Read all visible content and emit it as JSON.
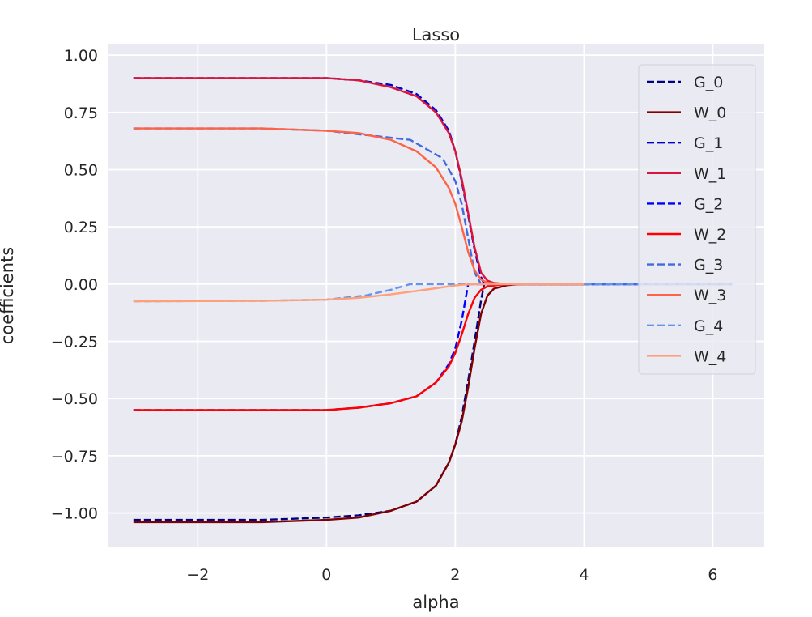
{
  "chart_data": {
    "type": "line",
    "title": "Lasso",
    "xlabel": "alpha",
    "ylabel": "coefficients",
    "xlim": [
      -3.4,
      6.8
    ],
    "ylim": [
      -1.15,
      1.05
    ],
    "xticks": [
      -2,
      0,
      2,
      4,
      6
    ],
    "xtick_labels": [
      "−2",
      "0",
      "2",
      "4",
      "6"
    ],
    "yticks": [
      1.0,
      0.75,
      0.5,
      0.25,
      0.0,
      -0.25,
      -0.5,
      -0.75,
      -1.0
    ],
    "ytick_labels": [
      "1.00",
      "0.75",
      "0.50",
      "0.25",
      "0.00",
      "−0.25",
      "−0.50",
      "−0.75",
      "−1.00"
    ],
    "grid": true,
    "legend_position": "top-right",
    "background": "#eaeaf2",
    "series": [
      {
        "name": "G_0",
        "style": "dashed",
        "color": "#000080",
        "x": [
          -3,
          -1,
          0,
          0.5,
          1,
          1.4,
          1.7,
          1.9,
          2.0,
          2.1,
          2.2,
          2.3,
          2.4,
          2.45,
          2.5,
          3,
          6.3
        ],
        "y": [
          -1.03,
          -1.03,
          -1.02,
          -1.01,
          -0.99,
          -0.95,
          -0.88,
          -0.78,
          -0.7,
          -0.58,
          -0.42,
          -0.25,
          -0.07,
          0.0,
          0.0,
          0.0,
          0.0
        ]
      },
      {
        "name": "W_0",
        "style": "solid",
        "color": "#800000",
        "x": [
          -3,
          -1,
          0,
          0.5,
          1,
          1.4,
          1.7,
          1.9,
          2.0,
          2.1,
          2.2,
          2.3,
          2.4,
          2.5,
          2.6,
          2.8,
          3.0,
          3.5,
          4.0
        ],
        "y": [
          -1.04,
          -1.04,
          -1.03,
          -1.02,
          -0.99,
          -0.95,
          -0.88,
          -0.78,
          -0.7,
          -0.6,
          -0.45,
          -0.28,
          -0.13,
          -0.05,
          -0.02,
          -0.005,
          0.0,
          0.0,
          0.0
        ]
      },
      {
        "name": "G_1",
        "style": "dashed",
        "color": "#0000cd",
        "x": [
          -3,
          -1,
          0,
          0.5,
          1,
          1.4,
          1.7,
          1.9,
          2.0,
          2.1,
          2.2,
          2.3,
          2.4,
          2.45,
          2.5,
          3,
          6.3
        ],
        "y": [
          0.9,
          0.9,
          0.9,
          0.89,
          0.87,
          0.83,
          0.76,
          0.67,
          0.58,
          0.45,
          0.3,
          0.15,
          0.03,
          0.0,
          0.0,
          0.0,
          0.0
        ]
      },
      {
        "name": "W_1",
        "style": "solid",
        "color": "#dc143c",
        "x": [
          -3,
          -1,
          0,
          0.5,
          1,
          1.4,
          1.7,
          1.9,
          2.0,
          2.1,
          2.2,
          2.3,
          2.4,
          2.5,
          2.6,
          2.8,
          3.0,
          3.5,
          4.0
        ],
        "y": [
          0.9,
          0.9,
          0.9,
          0.89,
          0.86,
          0.82,
          0.75,
          0.66,
          0.58,
          0.46,
          0.31,
          0.16,
          0.05,
          0.015,
          0.005,
          0.0,
          0.0,
          0.0,
          0.0
        ]
      },
      {
        "name": "G_2",
        "style": "dashed",
        "color": "#0000ff",
        "x": [
          -3,
          -1,
          0,
          0.5,
          1,
          1.4,
          1.7,
          1.9,
          2.0,
          2.1,
          2.15,
          2.2,
          2.3,
          3,
          6.3
        ],
        "y": [
          -0.55,
          -0.55,
          -0.55,
          -0.54,
          -0.52,
          -0.49,
          -0.43,
          -0.35,
          -0.28,
          -0.16,
          -0.08,
          0.0,
          0.0,
          0.0,
          0.0
        ]
      },
      {
        "name": "W_2",
        "style": "solid",
        "color": "#ff0000",
        "x": [
          -3,
          -1,
          0,
          0.5,
          1,
          1.4,
          1.7,
          1.9,
          2.0,
          2.1,
          2.2,
          2.3,
          2.4,
          2.5,
          2.7,
          3.0,
          3.5,
          4.0
        ],
        "y": [
          -0.55,
          -0.55,
          -0.55,
          -0.54,
          -0.52,
          -0.49,
          -0.43,
          -0.36,
          -0.3,
          -0.22,
          -0.13,
          -0.06,
          -0.025,
          -0.01,
          -0.003,
          0.0,
          0.0,
          0.0
        ]
      },
      {
        "name": "G_3",
        "style": "dashed",
        "color": "#4169e1",
        "x": [
          -3,
          -1,
          0,
          1.3,
          1.8,
          2.0,
          2.1,
          2.2,
          2.3,
          2.4,
          2.5,
          3.0,
          6.3
        ],
        "y": [
          0.68,
          0.68,
          0.67,
          0.63,
          0.55,
          0.45,
          0.35,
          0.2,
          0.05,
          0.0,
          0.0,
          0.0,
          0.0
        ]
      },
      {
        "name": "W_3",
        "style": "solid",
        "color": "#ff6347",
        "x": [
          -3,
          -1,
          0,
          0.5,
          1,
          1.4,
          1.7,
          1.9,
          2.0,
          2.1,
          2.2,
          2.3,
          2.4,
          2.5,
          2.7,
          3.0,
          3.5,
          4.0
        ],
        "y": [
          0.68,
          0.68,
          0.67,
          0.66,
          0.63,
          0.58,
          0.51,
          0.42,
          0.35,
          0.25,
          0.14,
          0.06,
          0.02,
          0.006,
          0.001,
          0.0,
          0.0,
          0.0
        ]
      },
      {
        "name": "G_4",
        "style": "dashed",
        "color": "#6495ed",
        "x": [
          -3,
          -1,
          0,
          0.6,
          1.0,
          1.3,
          6.3
        ],
        "y": [
          -0.075,
          -0.073,
          -0.068,
          -0.05,
          -0.025,
          0.0,
          0.0
        ]
      },
      {
        "name": "W_4",
        "style": "solid",
        "color": "#ffa07a",
        "x": [
          -3,
          -1,
          0,
          0.5,
          1.0,
          1.4,
          1.7,
          1.9,
          2.0,
          2.1,
          2.3,
          2.6,
          3.0,
          3.5,
          4.0
        ],
        "y": [
          -0.075,
          -0.073,
          -0.068,
          -0.06,
          -0.045,
          -0.03,
          -0.018,
          -0.01,
          -0.006,
          -0.003,
          0.0,
          0.0,
          0.0,
          0.0,
          0.0
        ]
      }
    ]
  }
}
